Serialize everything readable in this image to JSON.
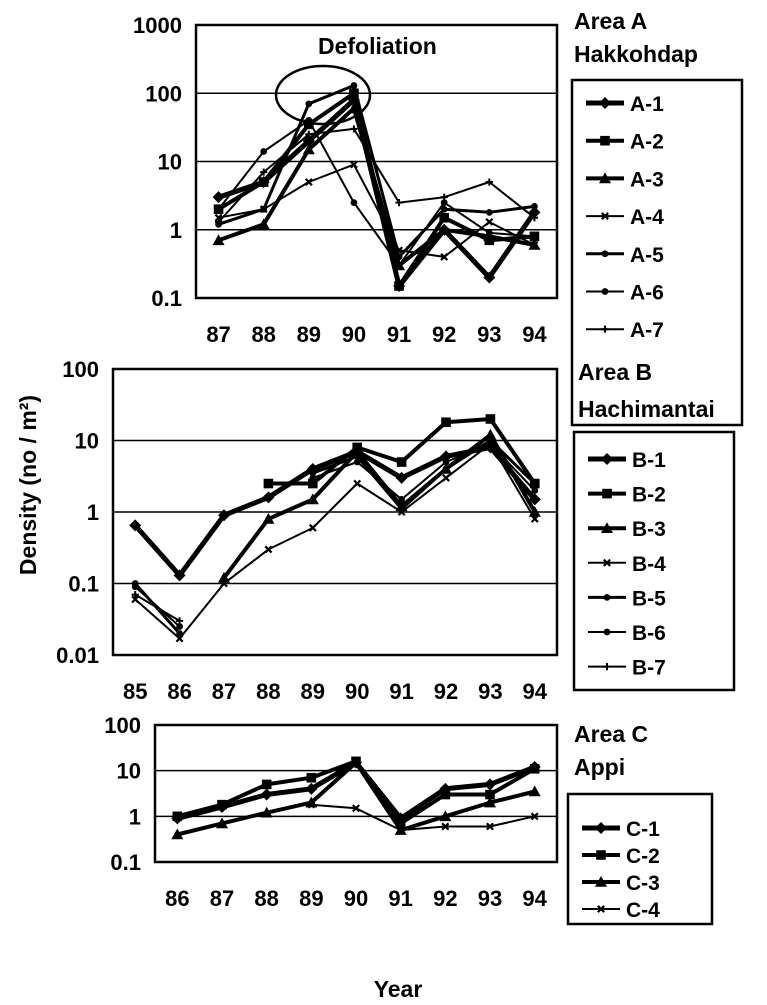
{
  "figure": {
    "ylabel": "Density (no / m²)",
    "xlabel": "Year"
  },
  "chart_data": [
    {
      "type": "line",
      "id": "A",
      "title_line1": "Area A",
      "title_line2": "Hakkohdap",
      "annotation": "Defoliation",
      "yscale": "log",
      "ylim": [
        0.1,
        1000
      ],
      "yticks": [
        "1000",
        "100",
        "10",
        "1",
        "0.1"
      ],
      "ytick_values": [
        1000,
        100,
        10,
        1,
        0.1
      ],
      "categories": [
        "87",
        "88",
        "89",
        "90",
        "91",
        "92",
        "93",
        "94"
      ],
      "legend_position": "right",
      "grid": true,
      "series": [
        {
          "name": "A-1",
          "marker": "diamond",
          "width": 5,
          "values": [
            3,
            5,
            20,
            80,
            0.15,
            1,
            0.2,
            1.8
          ]
        },
        {
          "name": "A-2",
          "marker": "square",
          "width": 4,
          "values": [
            2,
            5,
            35,
            100,
            0.15,
            1.5,
            0.7,
            0.8
          ]
        },
        {
          "name": "A-3",
          "marker": "triangle",
          "width": 4,
          "values": [
            0.7,
            1.2,
            15,
            60,
            0.3,
            1,
            0.8,
            0.6
          ]
        },
        {
          "name": "A-4",
          "marker": "x",
          "width": 2,
          "values": [
            1.5,
            2,
            5,
            9,
            0.5,
            0.4,
            1.3,
            0.6
          ]
        },
        {
          "name": "A-5",
          "marker": "circle",
          "width": 3,
          "values": [
            1.2,
            2,
            70,
            130,
            0.4,
            2,
            1.8,
            2.2
          ]
        },
        {
          "name": "A-6",
          "marker": "circle",
          "width": 2,
          "values": [
            2,
            14,
            40,
            2.5,
            0.3,
            2.5,
            0.9,
            0.8
          ]
        },
        {
          "name": "A-7",
          "marker": "plus",
          "width": 2,
          "values": [
            1.3,
            7,
            25,
            30,
            2.5,
            3,
            5,
            1.5
          ]
        }
      ]
    },
    {
      "type": "line",
      "id": "B",
      "title_line1": "Area B",
      "title_line2": "Hachimantai",
      "yscale": "log",
      "ylim": [
        0.01,
        100
      ],
      "yticks": [
        "100",
        "10",
        "1",
        "0.1",
        "0.01"
      ],
      "ytick_values": [
        100,
        10,
        1,
        0.1,
        0.01
      ],
      "categories": [
        "85",
        "86",
        "87",
        "88",
        "89",
        "90",
        "91",
        "92",
        "93",
        "94"
      ],
      "legend_position": "right",
      "grid": true,
      "series": [
        {
          "name": "B-1",
          "marker": "diamond",
          "width": 5,
          "values": [
            0.65,
            0.13,
            0.9,
            1.6,
            4,
            7,
            3,
            6,
            8,
            1.5
          ]
        },
        {
          "name": "B-2",
          "marker": "square",
          "width": 4,
          "values": [
            null,
            null,
            null,
            2.5,
            2.5,
            8,
            5,
            18,
            20,
            2.5
          ]
        },
        {
          "name": "B-3",
          "marker": "triangle",
          "width": 4,
          "values": [
            null,
            null,
            0.12,
            0.8,
            1.5,
            7,
            1.2,
            4,
            12,
            1
          ]
        },
        {
          "name": "B-4",
          "marker": "x",
          "width": 2,
          "values": [
            0.06,
            0.017,
            0.1,
            0.3,
            0.6,
            2.5,
            1,
            3,
            9,
            0.8
          ]
        },
        {
          "name": "B-5",
          "marker": "circle",
          "width": 3,
          "values": [
            0.1,
            0.02,
            null,
            null,
            3.5,
            6,
            1.1,
            4,
            10,
            2.5
          ]
        },
        {
          "name": "B-6",
          "marker": "circle",
          "width": 2,
          "values": [
            0.09,
            0.025,
            null,
            null,
            3,
            5,
            1.5,
            5,
            9,
            2
          ]
        },
        {
          "name": "B-7",
          "marker": "plus",
          "width": 2,
          "values": [
            0.07,
            0.03,
            null,
            null,
            null,
            null,
            null,
            null,
            null,
            null
          ]
        }
      ]
    },
    {
      "type": "line",
      "id": "C",
      "title_line1": "Area C",
      "title_line2": "Appi",
      "yscale": "log",
      "ylim": [
        0.1,
        100
      ],
      "yticks": [
        "100",
        "10",
        "1",
        "0.1"
      ],
      "ytick_values": [
        100,
        10,
        1,
        0.1
      ],
      "categories": [
        "86",
        "87",
        "88",
        "89",
        "90",
        "91",
        "92",
        "93",
        "94"
      ],
      "legend_position": "right",
      "grid": true,
      "series": [
        {
          "name": "C-1",
          "marker": "diamond",
          "width": 5,
          "values": [
            0.9,
            1.6,
            3,
            4,
            15,
            0.9,
            4,
            5,
            12
          ]
        },
        {
          "name": "C-2",
          "marker": "square",
          "width": 4,
          "values": [
            1,
            1.8,
            5,
            7,
            16,
            0.7,
            3,
            3,
            11
          ]
        },
        {
          "name": "C-3",
          "marker": "triangle",
          "width": 4,
          "values": [
            0.4,
            0.7,
            1.2,
            2,
            15,
            0.5,
            1,
            2,
            3.5
          ]
        },
        {
          "name": "C-4",
          "marker": "x",
          "width": 2,
          "values": [
            null,
            null,
            null,
            1.8,
            1.5,
            0.5,
            0.6,
            0.6,
            1
          ]
        }
      ]
    }
  ]
}
